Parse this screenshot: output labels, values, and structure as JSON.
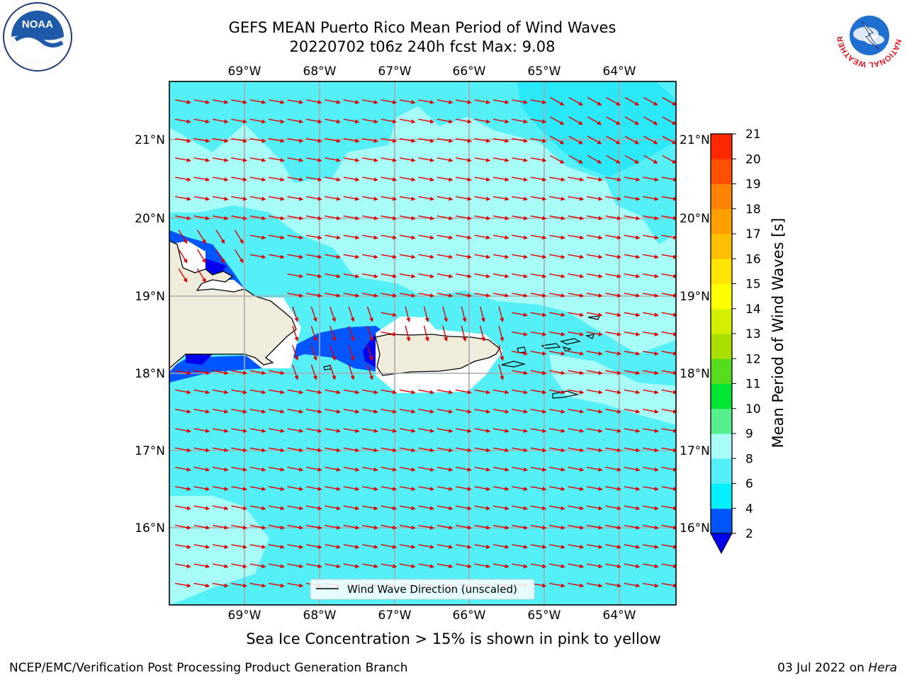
{
  "header": {
    "title_line1": "GEFS MEAN Puerto Rico Mean Period of Wind Waves",
    "title_line2": "20220702 t06z 240h fcst   Max: 9.08"
  },
  "map": {
    "lon_ticks": [
      "69°W",
      "68°W",
      "67°W",
      "66°W",
      "65°W",
      "64°W"
    ],
    "lat_ticks": [
      "21°N",
      "20°N",
      "19°N",
      "18°N",
      "17°N",
      "16°N"
    ],
    "legend_label": "Wind Wave Direction (unscaled)",
    "arrow_color": "#e00000",
    "ocean_base_color": "#55f0f7",
    "land_color": "#efecdc"
  },
  "colorbar": {
    "label": "Mean Period of Wind Waves [s]",
    "tick_labels": [
      "2",
      "4",
      "6",
      "8",
      "9",
      "10",
      "11",
      "12",
      "13",
      "14",
      "15",
      "16",
      "17",
      "18",
      "19",
      "20",
      "21"
    ],
    "colors": [
      "#0055ff",
      "#00f0ff",
      "#55f0f7",
      "#a8fcf7",
      "#55f08c",
      "#00e632",
      "#55dd1e",
      "#aadd00",
      "#d4f000",
      "#ffff00",
      "#ffe600",
      "#ffbe00",
      "#ffa000",
      "#ff8200",
      "#ff5000",
      "#ff2800",
      "#ff0000"
    ],
    "under_color": "#0000ee"
  },
  "note": "Sea Ice Concentration > 15% is shown in pink to yellow",
  "footer": {
    "left": "NCEP/EMC/Verification Post Processing Product Generation Branch",
    "right_date": "03 Jul 2022 on ",
    "right_host": "Hera"
  },
  "logos": {
    "noaa_text": "NOAA",
    "nws_ring_text": "NATIONAL WEATHER SERVICE"
  }
}
